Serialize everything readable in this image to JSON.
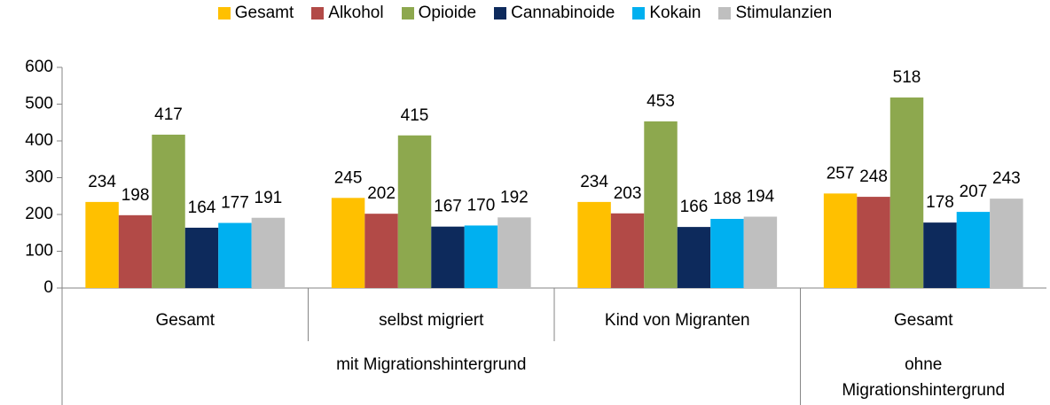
{
  "chart_data": {
    "type": "bar",
    "category_groups": [
      {
        "name": "mit Migrationshintergrund",
        "categories": [
          "Gesamt",
          "selbst migriert",
          "Kind von Migranten"
        ]
      },
      {
        "name": "ohne Migrationshintergrund",
        "categories": [
          "Gesamt"
        ]
      }
    ],
    "series": [
      {
        "name": "Gesamt",
        "color": "#FFC000",
        "values": [
          234,
          245,
          234,
          257
        ]
      },
      {
        "name": "Alkohol",
        "color": "#B24A47",
        "values": [
          198,
          202,
          203,
          248
        ]
      },
      {
        "name": "Opioide",
        "color": "#8DA84E",
        "values": [
          417,
          415,
          453,
          518
        ]
      },
      {
        "name": "Cannabinoide",
        "color": "#0D2A5C",
        "values": [
          164,
          167,
          166,
          178
        ]
      },
      {
        "name": "Kokain",
        "color": "#00B0F0",
        "values": [
          177,
          170,
          188,
          207
        ]
      },
      {
        "name": "Stimulanzien",
        "color": "#BFBFBF",
        "values": [
          191,
          192,
          194,
          243
        ]
      }
    ],
    "ylim": [
      0,
      600
    ],
    "yticks": [
      0,
      100,
      200,
      300,
      400,
      500,
      600
    ],
    "grid": false,
    "legend": "top"
  }
}
